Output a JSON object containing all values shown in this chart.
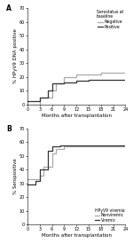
{
  "panel_A": {
    "title": "A",
    "ylabel": "% HPyV9 DNA positive",
    "xlabel": "Months after transplantation",
    "ylim": [
      0,
      70
    ],
    "yticks": [
      0,
      10,
      20,
      30,
      40,
      50,
      60,
      70
    ],
    "xlim": [
      0,
      24
    ],
    "xticks": [
      0,
      3,
      6,
      9,
      12,
      15,
      18,
      21,
      24
    ],
    "legend_title": "Serostatus at\nbaseline",
    "legend_labels": [
      "Negative",
      "Positive"
    ],
    "gray_curve_x": [
      0,
      3,
      6,
      7,
      9,
      12,
      18,
      21,
      24
    ],
    "gray_curve_y": [
      0,
      5,
      10,
      15,
      20,
      22,
      23,
      23,
      23
    ],
    "black_curve_x": [
      0,
      3,
      5,
      6,
      9,
      12,
      15,
      21,
      24
    ],
    "black_curve_y": [
      2,
      5,
      10,
      15,
      16,
      17,
      18,
      18,
      18
    ]
  },
  "panel_B": {
    "title": "B",
    "ylabel": "% Seropositive",
    "xlabel": "Months after transplantation",
    "ylim": [
      0,
      70
    ],
    "yticks": [
      0,
      10,
      20,
      30,
      40,
      50,
      60,
      70
    ],
    "xlim": [
      0,
      24
    ],
    "xticks": [
      0,
      3,
      6,
      9,
      12,
      15,
      18,
      21,
      24
    ],
    "legend_title": "HPyV9 viremia",
    "legend_labels": [
      "Nonviremic",
      "Viremic"
    ],
    "gray_curve_x": [
      0,
      3,
      4,
      6,
      7,
      9,
      12,
      24
    ],
    "gray_curve_y": [
      33,
      36,
      42,
      52,
      55,
      57,
      57,
      57
    ],
    "black_curve_x": [
      0,
      2,
      3,
      5,
      6,
      8,
      12,
      24
    ],
    "black_curve_y": [
      29,
      32,
      40,
      54,
      57,
      58,
      58,
      58
    ]
  },
  "gray_color": "#aaaaaa",
  "black_color": "#333333",
  "line_width": 0.9,
  "tick_font_size": 3.5,
  "label_font_size": 4.0,
  "legend_font_size": 3.3,
  "legend_title_font_size": 3.3,
  "title_font_size": 5.5,
  "figure_width": 1.5,
  "figure_height": 2.74,
  "dpi": 100
}
